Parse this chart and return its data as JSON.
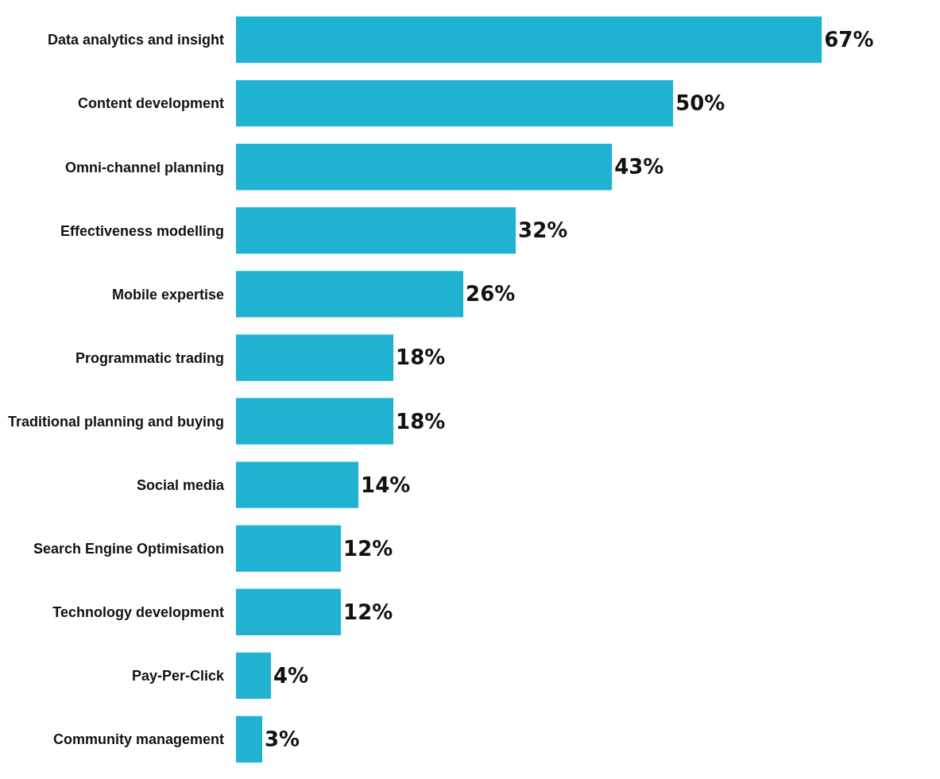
{
  "chart_data": {
    "type": "bar",
    "orientation": "horizontal",
    "color": "#1fb3d1",
    "tick_labels": "y",
    "categories": [
      "Data analytics and insight",
      "Content development",
      "Omni-channel planning",
      "Effectiveness modelling",
      "Mobile expertise",
      "Programmatic trading",
      "Traditional planning and buying",
      "Social media",
      "Search Engine Optimisation",
      "Technology development",
      "Pay-Per-Click",
      "Community management"
    ],
    "values": [
      67,
      50,
      43,
      32,
      26,
      18,
      18,
      14,
      12,
      12,
      4,
      3
    ],
    "value_labels": [
      "67%",
      "50%",
      "43%",
      "32%",
      "26%",
      "18%",
      "18%",
      "14%",
      "12%",
      "12%",
      "4%",
      "3%"
    ]
  }
}
